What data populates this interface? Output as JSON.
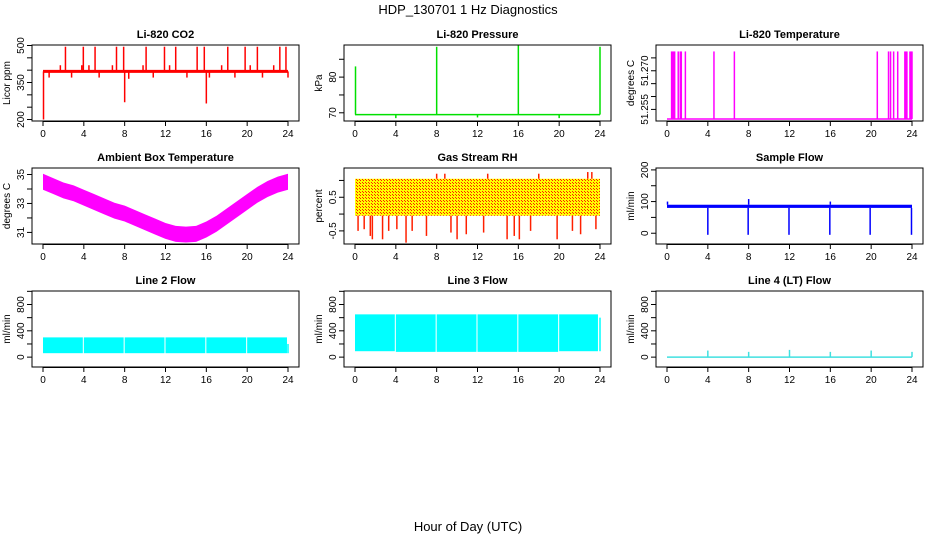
{
  "title": "HDP_130701  1 Hz Diagnostics",
  "xlabel": "Hour of Day (UTC)",
  "chart_data": [
    {
      "type": "line",
      "title": "Li-820 CO2",
      "ylabel": "Licor ppm",
      "color": "#ff0000",
      "xlim": [
        0,
        24
      ],
      "ylim": [
        194,
        502
      ],
      "yticks": [
        200,
        250,
        300,
        350,
        400,
        450,
        500
      ],
      "ylabels": [
        "200",
        "350",
        "500"
      ],
      "ylabel_values": [
        200,
        350,
        500
      ],
      "xticks": [
        0,
        4,
        8,
        12,
        16,
        20,
        24
      ],
      "baseline": 395,
      "spikes": [
        [
          0.05,
          200
        ],
        [
          0.1,
          400
        ],
        [
          0.6,
          370
        ],
        [
          1.7,
          420
        ],
        [
          2.2,
          495
        ],
        [
          2.8,
          370
        ],
        [
          3.8,
          420
        ],
        [
          3.95,
          495
        ],
        [
          4.5,
          420
        ],
        [
          5.1,
          495
        ],
        [
          5.5,
          370
        ],
        [
          6.8,
          420
        ],
        [
          7.2,
          495
        ],
        [
          7.9,
          495
        ],
        [
          8.0,
          270
        ],
        [
          8.4,
          365
        ],
        [
          9.8,
          420
        ],
        [
          10.1,
          495
        ],
        [
          10.8,
          370
        ],
        [
          11.9,
          495
        ],
        [
          12.4,
          420
        ],
        [
          13.0,
          495
        ],
        [
          14.1,
          370
        ],
        [
          15.1,
          495
        ],
        [
          15.8,
          495
        ],
        [
          16.0,
          265
        ],
        [
          16.3,
          370
        ],
        [
          17.5,
          420
        ],
        [
          18.1,
          495
        ],
        [
          18.8,
          370
        ],
        [
          19.8,
          495
        ],
        [
          20.3,
          420
        ],
        [
          21.0,
          495
        ],
        [
          21.5,
          370
        ],
        [
          22.6,
          420
        ],
        [
          23.2,
          495
        ],
        [
          23.8,
          495
        ],
        [
          24.0,
          370
        ]
      ]
    },
    {
      "type": "line",
      "title": "Li-820 Pressure",
      "ylabel": "kPa",
      "color": "#00e000",
      "xlim": [
        0,
        24
      ],
      "ylim": [
        67.7,
        89.0
      ],
      "yticks": [
        70,
        75,
        80,
        85
      ],
      "ylabels": [
        "70",
        "80"
      ],
      "ylabel_values": [
        70,
        80
      ],
      "xticks": [
        0,
        4,
        8,
        12,
        16,
        20,
        24
      ],
      "baseline": 69.5,
      "spikes": [
        [
          0.05,
          83
        ],
        [
          4.0,
          68.5
        ],
        [
          8.0,
          88.5
        ],
        [
          12.0,
          68.7
        ],
        [
          16.0,
          89
        ],
        [
          20.0,
          68.5
        ],
        [
          24.0,
          88.5
        ]
      ]
    },
    {
      "type": "line",
      "title": "Li-820 Temperature",
      "ylabel": "degrees C",
      "color": "#ff00ff",
      "xlim": [
        0,
        24
      ],
      "ylim": [
        51.2505,
        51.28
      ],
      "yticks": [
        51.255,
        51.26,
        51.265,
        51.27,
        51.275
      ],
      "ylabels": [
        "51.255",
        "51.270"
      ],
      "ylabel_values": [
        51.255,
        51.27
      ],
      "xticks": [
        0,
        4,
        8,
        12,
        16,
        20,
        24
      ],
      "baseline": 51.2513,
      "spikes": [
        [
          0.45,
          51.2775
        ],
        [
          0.55,
          51.2775
        ],
        [
          0.65,
          51.2775
        ],
        [
          0.75,
          51.2775
        ],
        [
          1.1,
          51.2775
        ],
        [
          1.3,
          51.2775
        ],
        [
          1.4,
          51.2775
        ],
        [
          1.8,
          51.2775
        ],
        [
          4.6,
          51.2775
        ],
        [
          6.6,
          51.2775
        ],
        [
          20.6,
          51.2775
        ],
        [
          21.7,
          51.2775
        ],
        [
          21.9,
          51.2775
        ],
        [
          22.2,
          51.2775
        ],
        [
          22.6,
          51.2775
        ],
        [
          23.3,
          51.2775
        ],
        [
          23.4,
          51.2775
        ],
        [
          23.5,
          51.2775
        ],
        [
          23.8,
          51.2775
        ],
        [
          23.9,
          51.2775
        ],
        [
          24.0,
          51.2775
        ]
      ]
    },
    {
      "type": "area",
      "title": "Ambient Box Temperature",
      "ylabel": "degrees C",
      "color": "#ff00ff",
      "xlim": [
        0,
        24
      ],
      "ylim": [
        30.2,
        35.45
      ],
      "yticks": [
        31,
        32,
        33,
        34,
        35
      ],
      "ylabels": [
        "31",
        "33",
        "35"
      ],
      "ylabel_values": [
        31,
        33,
        35
      ],
      "xticks": [
        0,
        4,
        8,
        12,
        16,
        20,
        24
      ],
      "band_x": [
        0,
        1,
        2,
        3,
        4,
        5,
        6,
        7,
        8,
        9,
        10,
        11,
        12,
        13,
        14,
        15,
        16,
        17,
        18,
        19,
        20,
        21,
        22,
        23,
        24
      ],
      "band_center": [
        34.5,
        34.2,
        33.9,
        33.7,
        33.4,
        33.1,
        32.8,
        32.5,
        32.3,
        32.0,
        31.7,
        31.4,
        31.1,
        30.9,
        30.85,
        30.9,
        31.2,
        31.6,
        32.1,
        32.6,
        33.1,
        33.6,
        34.0,
        34.3,
        34.5
      ],
      "band_halfwidth": 0.55
    },
    {
      "type": "area",
      "title": "Gas Stream RH",
      "ylabel": "percent",
      "color": "#ffff00",
      "color2": "#ff2000",
      "xlim": [
        0,
        24
      ],
      "ylim": [
        -0.89,
        1.37
      ],
      "yticks": [
        -0.5,
        0,
        0.5,
        1
      ],
      "ylabels": [
        "-0.5",
        "0.5"
      ],
      "ylabel_values": [
        -0.5,
        0.5
      ],
      "xticks": [
        0,
        4,
        8,
        12,
        16,
        20,
        24
      ],
      "band_x": [
        0,
        24
      ],
      "band_lo": [
        -0.05,
        -0.05
      ],
      "band_hi": [
        1.05,
        1.05
      ],
      "spikes": [
        [
          0.3,
          -0.5
        ],
        [
          0.9,
          -0.45
        ],
        [
          1.5,
          -0.65
        ],
        [
          1.7,
          -0.75
        ],
        [
          2.7,
          -0.75
        ],
        [
          3.3,
          -0.5
        ],
        [
          4.1,
          -0.45
        ],
        [
          5.0,
          -0.85
        ],
        [
          5.6,
          -0.5
        ],
        [
          7.0,
          -0.65
        ],
        [
          8.0,
          1.2
        ],
        [
          8.8,
          1.2
        ],
        [
          9.4,
          -0.55
        ],
        [
          10.0,
          -0.75
        ],
        [
          10.9,
          -0.6
        ],
        [
          12.6,
          -0.55
        ],
        [
          13.0,
          1.2
        ],
        [
          14.9,
          -0.75
        ],
        [
          15.6,
          -0.65
        ],
        [
          16.1,
          -0.75
        ],
        [
          17.2,
          -0.5
        ],
        [
          18.0,
          1.2
        ],
        [
          19.8,
          -0.75
        ],
        [
          21.3,
          -0.5
        ],
        [
          22.1,
          -0.6
        ],
        [
          22.8,
          1.25
        ],
        [
          23.2,
          1.25
        ],
        [
          23.6,
          -0.45
        ]
      ]
    },
    {
      "type": "line",
      "title": "Sample Flow",
      "ylabel": "ml/min",
      "color": "#0000ff",
      "xlim": [
        0,
        24
      ],
      "ylim": [
        -34,
        206
      ],
      "yticks": [
        0,
        50,
        100,
        150,
        200
      ],
      "ylabels": [
        "0",
        "100",
        "200"
      ],
      "ylabel_values": [
        0,
        100,
        200
      ],
      "xticks": [
        0,
        4,
        8,
        12,
        16,
        20,
        24
      ],
      "band_x": [
        0,
        24
      ],
      "band_lo": [
        80,
        80
      ],
      "band_hi": [
        90,
        90
      ],
      "spikes": [
        [
          0.05,
          100
        ],
        [
          4.0,
          -5
        ],
        [
          7.95,
          -5
        ],
        [
          8.0,
          108
        ],
        [
          11.95,
          -5
        ],
        [
          15.95,
          -5
        ],
        [
          16.0,
          100
        ],
        [
          19.9,
          -5
        ],
        [
          23.95,
          -5
        ]
      ]
    },
    {
      "type": "area",
      "title": "Line 2 Flow",
      "ylabel": "ml/min",
      "color": "#00ffff",
      "xlim": [
        0,
        24
      ],
      "ylim": [
        -150,
        1005
      ],
      "yticks": [
        0,
        200,
        400,
        600,
        800,
        1000
      ],
      "ylabels": [
        "0",
        "400",
        "800"
      ],
      "ylabel_values": [
        0,
        400,
        800
      ],
      "xticks": [
        0,
        4,
        8,
        12,
        16,
        20,
        24
      ],
      "segments": [
        [
          0,
          3.9,
          60,
          300
        ],
        [
          4.0,
          7.9,
          60,
          300
        ],
        [
          8.0,
          11.9,
          60,
          300
        ],
        [
          12.0,
          15.9,
          60,
          300
        ],
        [
          16.0,
          19.9,
          60,
          300
        ],
        [
          20.0,
          23.9,
          60,
          300
        ]
      ],
      "spikes": [
        [
          24.0,
          200
        ]
      ]
    },
    {
      "type": "area",
      "title": "Line 3 Flow",
      "ylabel": "ml/min",
      "color": "#00ffff",
      "xlim": [
        0,
        24
      ],
      "ylim": [
        -150,
        1005
      ],
      "yticks": [
        0,
        200,
        400,
        600,
        800,
        1000
      ],
      "ylabels": [
        "0",
        "400",
        "800"
      ],
      "ylabel_values": [
        0,
        400,
        800
      ],
      "xticks": [
        0,
        4,
        8,
        12,
        16,
        20,
        24
      ],
      "segments": [
        [
          0,
          3.9,
          90,
          650
        ],
        [
          4.0,
          7.9,
          80,
          650
        ],
        [
          8.0,
          11.9,
          80,
          650
        ],
        [
          12.0,
          15.9,
          80,
          650
        ],
        [
          16.0,
          19.9,
          80,
          650
        ],
        [
          20.0,
          23.8,
          90,
          650
        ]
      ],
      "spikes": [
        [
          24.0,
          600
        ]
      ]
    },
    {
      "type": "line",
      "title": "Line 4 (LT) Flow",
      "ylabel": "ml/min",
      "color": "#40e0e0",
      "xlim": [
        0,
        24
      ],
      "ylim": [
        -150,
        1005
      ],
      "yticks": [
        0,
        200,
        400,
        600,
        800,
        1000
      ],
      "ylabels": [
        "0",
        "400",
        "800"
      ],
      "ylabel_values": [
        0,
        400,
        800
      ],
      "xticks": [
        0,
        4,
        8,
        12,
        16,
        20,
        24
      ],
      "baseline": 0,
      "spikes": [
        [
          4.0,
          100
        ],
        [
          8.0,
          80
        ],
        [
          12.0,
          110
        ],
        [
          16.0,
          80
        ],
        [
          20.0,
          100
        ],
        [
          24.0,
          80
        ]
      ]
    }
  ]
}
